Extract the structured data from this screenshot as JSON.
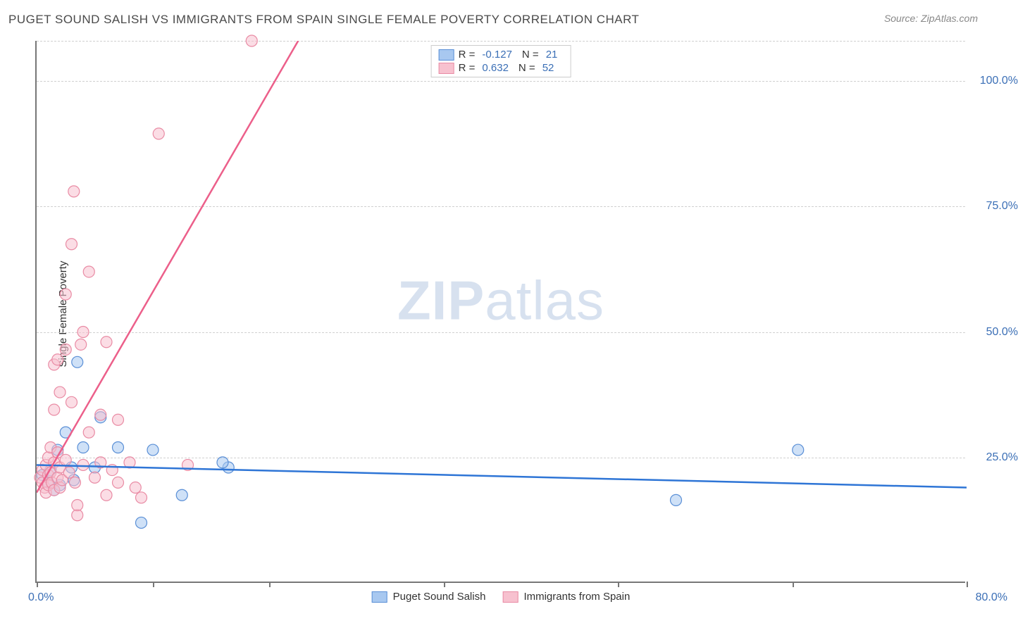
{
  "title": "PUGET SOUND SALISH VS IMMIGRANTS FROM SPAIN SINGLE FEMALE POVERTY CORRELATION CHART",
  "source": "Source: ZipAtlas.com",
  "ylabel": "Single Female Poverty",
  "watermark_bold": "ZIP",
  "watermark_light": "atlas",
  "chart": {
    "type": "scatter",
    "xlim": [
      0,
      80
    ],
    "ylim": [
      0,
      108
    ],
    "x_ticks": [
      0,
      10,
      20,
      35,
      50,
      65,
      80
    ],
    "y_gridlines": [
      25,
      50,
      75,
      100,
      108
    ],
    "x_label_min": "0.0%",
    "x_label_max": "80.0%",
    "y_tick_labels": {
      "25": "25.0%",
      "50": "50.0%",
      "75": "75.0%",
      "100": "100.0%"
    },
    "background_color": "#ffffff",
    "grid_color": "#d0d0d0",
    "axis_color": "#777777",
    "marker_radius": 8,
    "marker_opacity": 0.55,
    "line_width": 2.5,
    "label_color": "#3b6fb6",
    "series": [
      {
        "name": "Puget Sound Salish",
        "color_fill": "#a8c8f0",
        "color_stroke": "#5a8fd6",
        "line_color": "#2e75d6",
        "R": "-0.127",
        "N": "21",
        "trend": {
          "x1": 0,
          "y1": 23.5,
          "x2": 80,
          "y2": 19.0
        },
        "points": [
          [
            0.5,
            21.5
          ],
          [
            1.0,
            20.0
          ],
          [
            1.2,
            22.5
          ],
          [
            1.5,
            18.5
          ],
          [
            1.8,
            26.5
          ],
          [
            2.0,
            19.5
          ],
          [
            2.5,
            30.0
          ],
          [
            3.0,
            23.0
          ],
          [
            3.2,
            20.5
          ],
          [
            3.5,
            44.0
          ],
          [
            4.0,
            27.0
          ],
          [
            5.0,
            23.0
          ],
          [
            5.5,
            33.0
          ],
          [
            7.0,
            27.0
          ],
          [
            9.0,
            12.0
          ],
          [
            10.0,
            26.5
          ],
          [
            12.5,
            17.5
          ],
          [
            16.5,
            23.0
          ],
          [
            16.0,
            24.0
          ],
          [
            55.0,
            16.5
          ],
          [
            65.5,
            26.5
          ]
        ]
      },
      {
        "name": "Immigrants from Spain",
        "color_fill": "#f7c1cf",
        "color_stroke": "#e98ba4",
        "line_color": "#ec5f8a",
        "R": "0.632",
        "N": "52",
        "trend": {
          "x1": 0,
          "y1": 18.0,
          "x2": 22.5,
          "y2": 108.0
        },
        "points": [
          [
            0.3,
            21.0
          ],
          [
            0.5,
            20.0
          ],
          [
            0.5,
            22.5
          ],
          [
            0.7,
            19.0
          ],
          [
            0.8,
            23.5
          ],
          [
            0.8,
            18.0
          ],
          [
            1.0,
            25.0
          ],
          [
            1.0,
            21.5
          ],
          [
            1.0,
            19.5
          ],
          [
            1.2,
            27.0
          ],
          [
            1.2,
            22.0
          ],
          [
            1.3,
            20.0
          ],
          [
            1.5,
            24.0
          ],
          [
            1.5,
            18.5
          ],
          [
            1.5,
            43.5
          ],
          [
            1.5,
            34.5
          ],
          [
            1.8,
            21.0
          ],
          [
            1.8,
            26.0
          ],
          [
            1.8,
            44.5
          ],
          [
            2.0,
            19.0
          ],
          [
            2.0,
            23.0
          ],
          [
            2.0,
            38.0
          ],
          [
            2.2,
            20.5
          ],
          [
            2.5,
            24.5
          ],
          [
            2.5,
            46.5
          ],
          [
            2.5,
            57.5
          ],
          [
            2.8,
            22.0
          ],
          [
            3.0,
            36.0
          ],
          [
            3.0,
            67.5
          ],
          [
            3.2,
            78.0
          ],
          [
            3.3,
            20.0
          ],
          [
            3.5,
            13.5
          ],
          [
            3.5,
            15.5
          ],
          [
            3.8,
            47.5
          ],
          [
            4.0,
            23.5
          ],
          [
            4.0,
            50.0
          ],
          [
            4.5,
            30.0
          ],
          [
            4.5,
            62.0
          ],
          [
            5.0,
            21.0
          ],
          [
            5.5,
            24.0
          ],
          [
            5.5,
            33.5
          ],
          [
            6.0,
            17.5
          ],
          [
            6.0,
            48.0
          ],
          [
            6.5,
            22.5
          ],
          [
            7.0,
            20.0
          ],
          [
            7.0,
            32.5
          ],
          [
            8.0,
            24.0
          ],
          [
            8.5,
            19.0
          ],
          [
            9.0,
            17.0
          ],
          [
            10.5,
            89.5
          ],
          [
            13.0,
            23.5
          ],
          [
            18.5,
            108.0
          ]
        ]
      }
    ]
  },
  "legend_bottom": [
    {
      "label": "Puget Sound Salish",
      "fill": "#a8c8f0",
      "stroke": "#5a8fd6"
    },
    {
      "label": "Immigrants from Spain",
      "fill": "#f7c1cf",
      "stroke": "#e98ba4"
    }
  ]
}
